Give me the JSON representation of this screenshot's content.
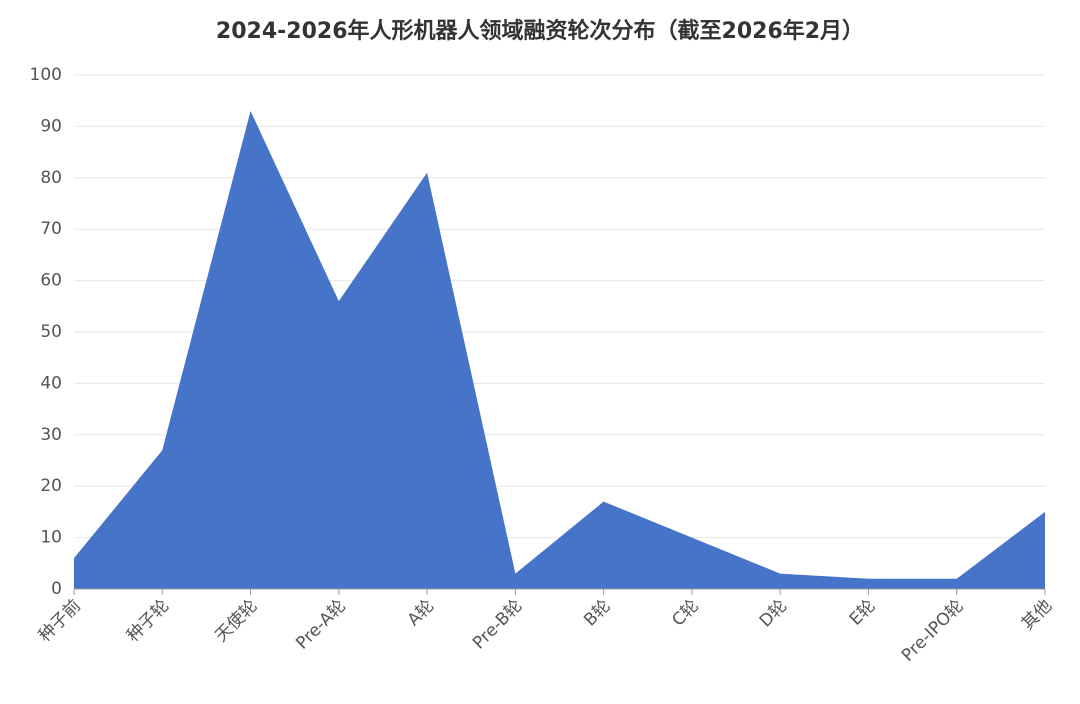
{
  "chart_data": {
    "type": "area",
    "title": "2024-2026年人形机器人领域融资轮次分布（截至2026年2月）",
    "categories": [
      "种子前",
      "种子轮",
      "天使轮",
      "Pre-A轮",
      "A轮",
      "Pre-B轮",
      "B轮",
      "C轮",
      "D轮",
      "E轮",
      "Pre-IPO轮",
      "其他"
    ],
    "values": [
      6,
      27,
      93,
      56,
      81,
      3,
      17,
      10,
      3,
      2,
      2,
      15
    ],
    "color": "#4674c9",
    "ylim": [
      0,
      100
    ],
    "yticks": [
      0,
      10,
      20,
      30,
      40,
      50,
      60,
      70,
      80,
      90,
      100
    ],
    "grid": true
  }
}
